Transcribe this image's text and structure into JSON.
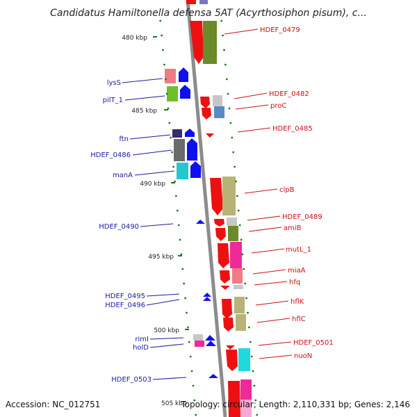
{
  "title": "Candidatus Hamiltonella defensa 5AT (Acyrthosiphon pisum), c...",
  "footer": {
    "accession": "Accession: NC_012751",
    "summary": "Topology: circular; Length: 2,110,331 bp; Genes: 2,146"
  },
  "colors": {
    "backbone": "#8c8c8c",
    "forward_strand": "#1010ee",
    "reverse_strand": "#ee1010",
    "left_label": "#1a1aa0",
    "right_label": "#cc1010",
    "tick": "#1a7a1a"
  },
  "scale_marks": [
    "480 kbp",
    "485 kbp",
    "490 kbp",
    "495 kbp",
    "500 kbp",
    "505 kbp"
  ],
  "left_genes": [
    "lysS",
    "pilT_1",
    "ftn",
    "HDEF_0486",
    "manA",
    "HDEF_0490",
    "HDEF_0495",
    "HDEF_0496",
    "rimI",
    "holD",
    "HDEF_0503"
  ],
  "right_genes": [
    "HDEF_0479",
    "HDEF_0482",
    "proC",
    "HDEF_0485",
    "clpB",
    "HDEF_0489",
    "amiB",
    "mutL_1",
    "miaA",
    "hfq",
    "hflK",
    "hflC",
    "HDEF_0501",
    "nuoN"
  ]
}
